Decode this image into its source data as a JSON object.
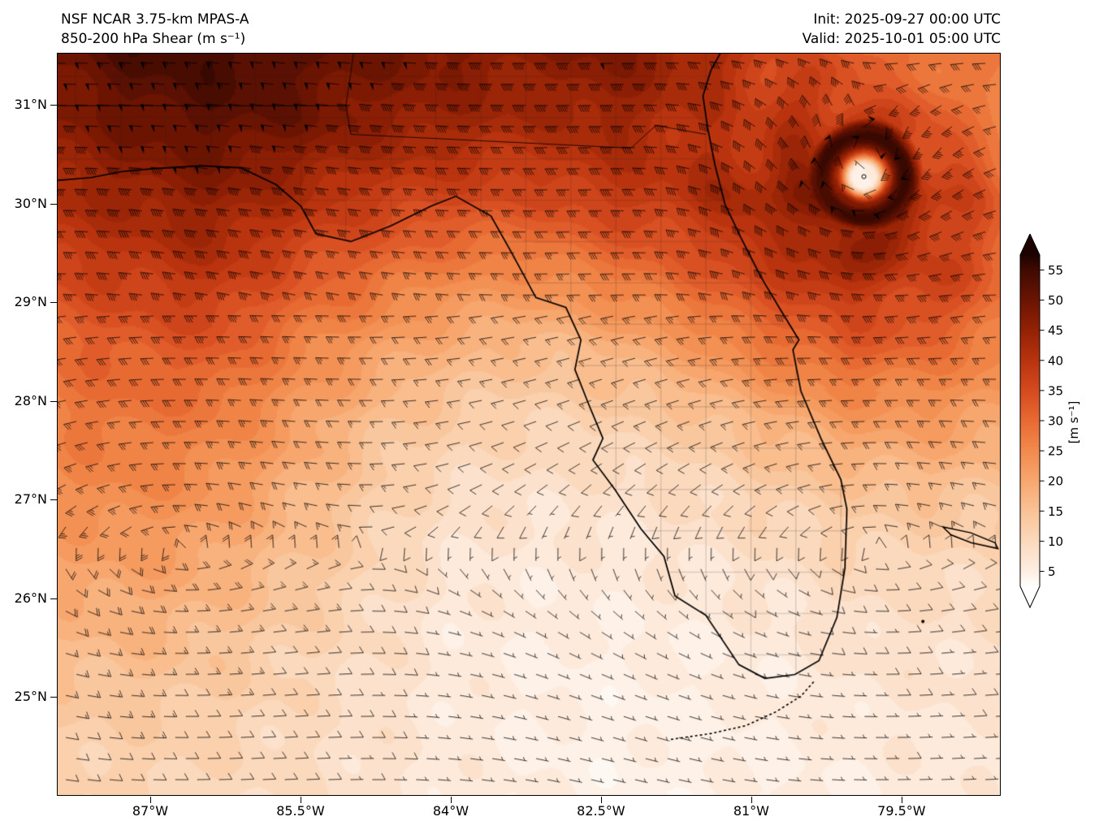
{
  "header": {
    "model_line": "NSF NCAR 3.75-km MPAS-A",
    "field_line": "850-200 hPa Shear (m s⁻¹)",
    "init_line": "Init: 2025-09-27 00:00 UTC",
    "valid_line": "Valid: 2025-10-01 05:00 UTC"
  },
  "chart_data": {
    "type": "heatmap",
    "subtype": "filled-contour shear magnitude map with wind barbs and tropical cyclone",
    "title": "850-200 hPa Shear (m s⁻¹)",
    "model": "NSF NCAR 3.75-km MPAS-A",
    "init_time": "2025-09-27 00:00 UTC",
    "valid_time": "2025-10-01 05:00 UTC",
    "x_axis": {
      "ticks": [
        -87,
        -85.5,
        -84,
        -82.5,
        -81,
        -79.5
      ],
      "tick_labels": [
        "87°W",
        "85.5°W",
        "84°W",
        "82.5°W",
        "81°W",
        "79.5°W"
      ],
      "range_lon": [
        -87.93,
        -78.51
      ]
    },
    "y_axis": {
      "ticks": [
        31,
        30,
        29,
        28,
        27,
        26,
        25
      ],
      "tick_labels": [
        "31°N",
        "30°N",
        "29°N",
        "28°N",
        "27°N",
        "26°N",
        "25°N"
      ],
      "range_lat": [
        24.0,
        31.53
      ]
    },
    "colorbar": {
      "unit_label": "[m s⁻¹]",
      "ticks": [
        5,
        10,
        15,
        20,
        25,
        30,
        35,
        40,
        45,
        50,
        55
      ],
      "range": [
        2.5,
        57.5
      ],
      "extend": "both",
      "stop_values": [
        0,
        5,
        10,
        15,
        20,
        25,
        30,
        35,
        40,
        45,
        50,
        55,
        60
      ],
      "stop_colors": [
        "#ffffff",
        "#fdeee2",
        "#fbd9bd",
        "#f9c296",
        "#f7a76e",
        "#f28a4c",
        "#e86a33",
        "#d54a1e",
        "#b8330e",
        "#932105",
        "#6b1402",
        "#400a01",
        "#1c0300"
      ]
    },
    "shear_grid": {
      "units": "m s-1",
      "lons": [
        -88.0,
        -87.2,
        -86.4,
        -85.6,
        -84.8,
        -84.0,
        -83.2,
        -82.4,
        -81.6,
        -80.8,
        -80.0,
        -79.2,
        -78.4
      ],
      "lats": [
        31.6,
        30.84,
        30.08,
        29.32,
        28.56,
        27.8,
        27.04,
        26.28,
        25.52,
        24.76,
        24.0
      ],
      "values_mps": [
        [
          50,
          54,
          55,
          52,
          50,
          48,
          46,
          48,
          44,
          36,
          30,
          28,
          26
        ],
        [
          46,
          50,
          52,
          50,
          46,
          44,
          42,
          44,
          40,
          38,
          40,
          32,
          26
        ],
        [
          42,
          44,
          46,
          42,
          38,
          36,
          35,
          38,
          40,
          44,
          50,
          40,
          30
        ],
        [
          36,
          38,
          40,
          34,
          30,
          26,
          25,
          28,
          32,
          38,
          42,
          38,
          30
        ],
        [
          30,
          32,
          33,
          27,
          22,
          18,
          16,
          18,
          22,
          28,
          32,
          30,
          26
        ],
        [
          27,
          28,
          27,
          22,
          16,
          13,
          11,
          12,
          14,
          18,
          22,
          22,
          20
        ],
        [
          24,
          25,
          23,
          18,
          13,
          9,
          8,
          8,
          9,
          12,
          14,
          15,
          14
        ],
        [
          20,
          21,
          19,
          15,
          11,
          7,
          6,
          6,
          7,
          8,
          10,
          10,
          10
        ],
        [
          16,
          17,
          15,
          12,
          9,
          6,
          5,
          5,
          5,
          6,
          8,
          8,
          8
        ],
        [
          13,
          13,
          12,
          10,
          8,
          6,
          5,
          4,
          5,
          5,
          6,
          7,
          7
        ],
        [
          11,
          11,
          10,
          9,
          8,
          6,
          5,
          4,
          4,
          5,
          5,
          6,
          6
        ]
      ]
    },
    "cyclone": {
      "lon": -79.87,
      "lat": 30.28,
      "eye_value_mps": 4,
      "ring_value_mps": 56,
      "ring_radius_deg": 0.42
    }
  }
}
